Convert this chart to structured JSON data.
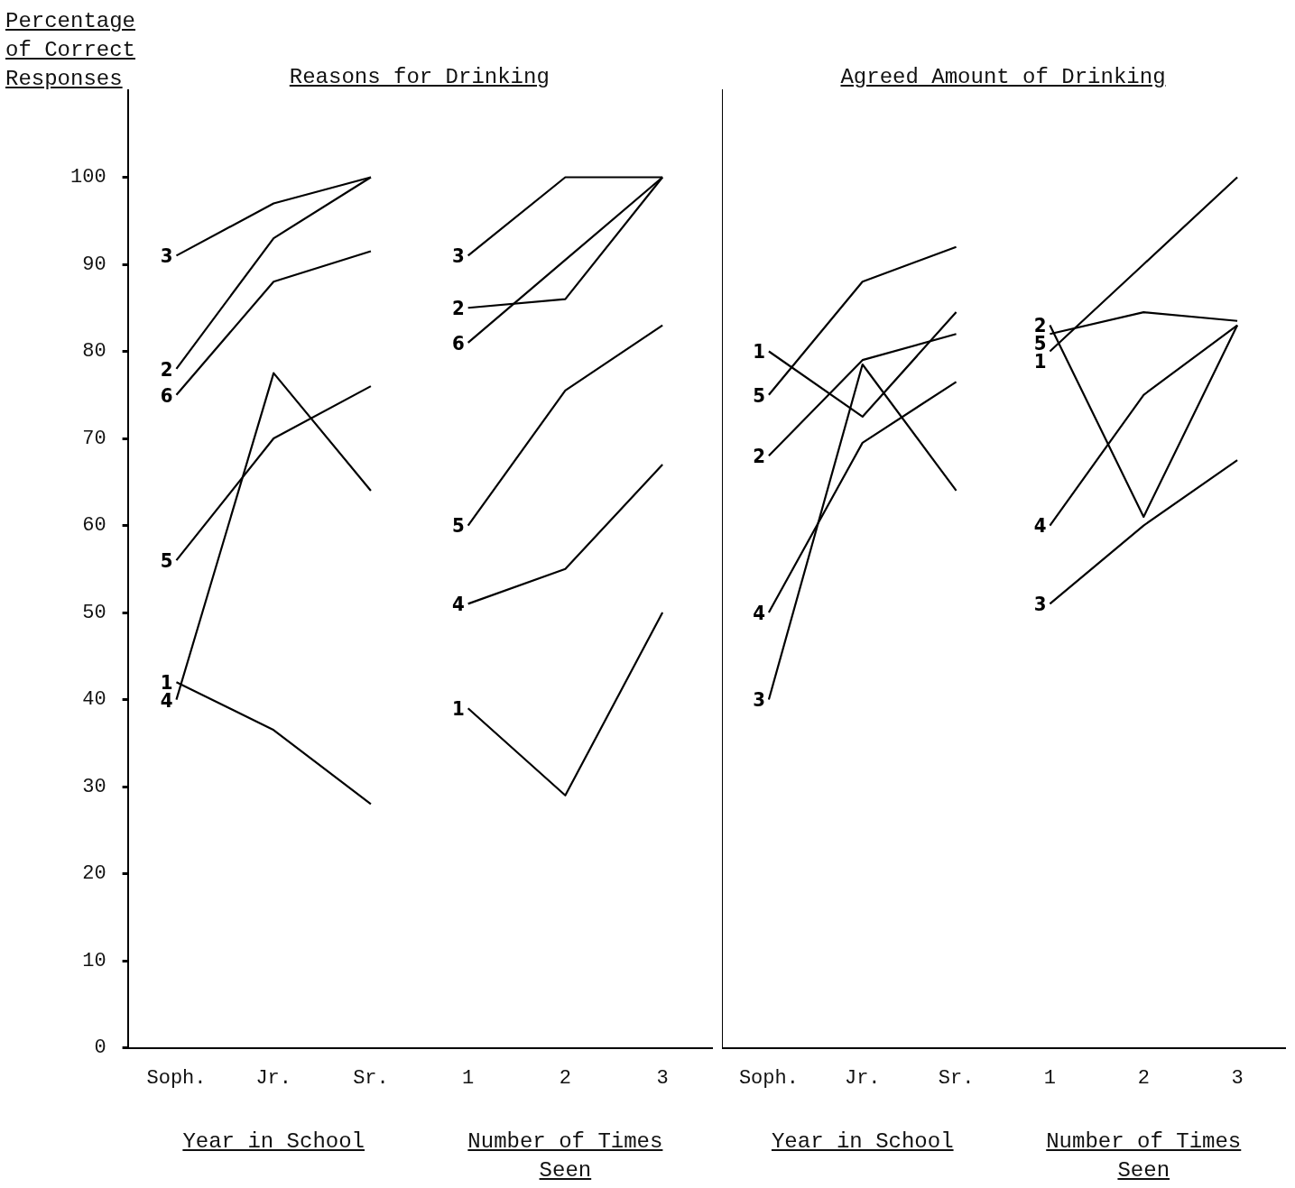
{
  "chart_data": [
    {
      "type": "line",
      "title": "Reasons for Drinking",
      "ylabel": "Percentage of Correct Responses",
      "categories": [
        "Soph.",
        "Jr.",
        "Sr.",
        "1",
        "2",
        "3"
      ],
      "ylim": [
        0,
        110
      ],
      "yticks": [
        0,
        10,
        20,
        30,
        40,
        50,
        60,
        70,
        80,
        90,
        100
      ],
      "annotations": [
        "Year in School",
        "Number of Times Seen"
      ],
      "series": [
        {
          "name": "3",
          "color": "#000000",
          "values": [
            91,
            97,
            100,
            null,
            null,
            null
          ]
        },
        {
          "name": "2",
          "color": "#000000",
          "values": [
            78,
            93,
            100,
            null,
            null,
            null
          ]
        },
        {
          "name": "6",
          "color": "#000000",
          "values": [
            75,
            88,
            91.5,
            null,
            null,
            null
          ]
        },
        {
          "name": "5",
          "color": "#000000",
          "values": [
            56,
            70,
            76,
            null,
            null,
            null
          ]
        },
        {
          "name": "1",
          "color": "#000000",
          "values": [
            42,
            36.5,
            28,
            null,
            null,
            null
          ]
        },
        {
          "name": "4",
          "color": "#000000",
          "values": [
            40,
            77.5,
            64,
            null,
            null,
            null
          ]
        },
        {
          "name": "3",
          "color": "#000000",
          "values": [
            null,
            null,
            null,
            91,
            100,
            100
          ]
        },
        {
          "name": "2",
          "color": "#000000",
          "values": [
            null,
            null,
            null,
            85,
            86,
            100
          ]
        },
        {
          "name": "6",
          "color": "#000000",
          "values": [
            null,
            null,
            null,
            81,
            90.5,
            100
          ]
        },
        {
          "name": "5",
          "color": "#000000",
          "values": [
            null,
            null,
            null,
            60,
            75.5,
            83
          ]
        },
        {
          "name": "4",
          "color": "#000000",
          "values": [
            null,
            null,
            null,
            51,
            55,
            67
          ]
        },
        {
          "name": "1",
          "color": "#000000",
          "values": [
            null,
            null,
            null,
            39,
            29,
            50
          ]
        }
      ]
    },
    {
      "type": "line",
      "title": "Agreed Amount of Drinking",
      "tick_labels": "x",
      "categories": [
        "Soph.",
        "Jr.",
        "Sr.",
        "1",
        "2",
        "3"
      ],
      "ylim": [
        0,
        110
      ],
      "yticks": [
        0,
        10,
        20,
        30,
        40,
        50,
        60,
        70,
        80,
        90,
        100
      ],
      "annotations": [
        "Year in School",
        "Number of Times Seen"
      ],
      "series": [
        {
          "name": "1",
          "color": "#000000",
          "values": [
            80,
            72.5,
            84.5,
            null,
            null,
            null
          ]
        },
        {
          "name": "5",
          "color": "#000000",
          "values": [
            75,
            88,
            92,
            null,
            null,
            null
          ]
        },
        {
          "name": "2",
          "color": "#000000",
          "values": [
            68,
            79,
            82,
            null,
            null,
            null
          ]
        },
        {
          "name": "4",
          "color": "#000000",
          "values": [
            50,
            69.5,
            76.5,
            null,
            null,
            null
          ]
        },
        {
          "name": "3",
          "color": "#000000",
          "values": [
            40,
            78.5,
            64,
            null,
            null,
            null
          ]
        },
        {
          "name": "2",
          "color": "#000000",
          "values": [
            null,
            null,
            null,
            83,
            61,
            83
          ]
        },
        {
          "name": "5",
          "color": "#000000",
          "values": [
            null,
            null,
            null,
            82,
            84.5,
            83.5
          ]
        },
        {
          "name": "1",
          "color": "#000000",
          "values": [
            null,
            null,
            null,
            80,
            90,
            100
          ]
        },
        {
          "name": "4",
          "color": "#000000",
          "values": [
            null,
            null,
            null,
            60,
            75,
            83
          ]
        },
        {
          "name": "3",
          "color": "#000000",
          "values": [
            null,
            null,
            null,
            51,
            60,
            67.5
          ]
        }
      ]
    }
  ]
}
